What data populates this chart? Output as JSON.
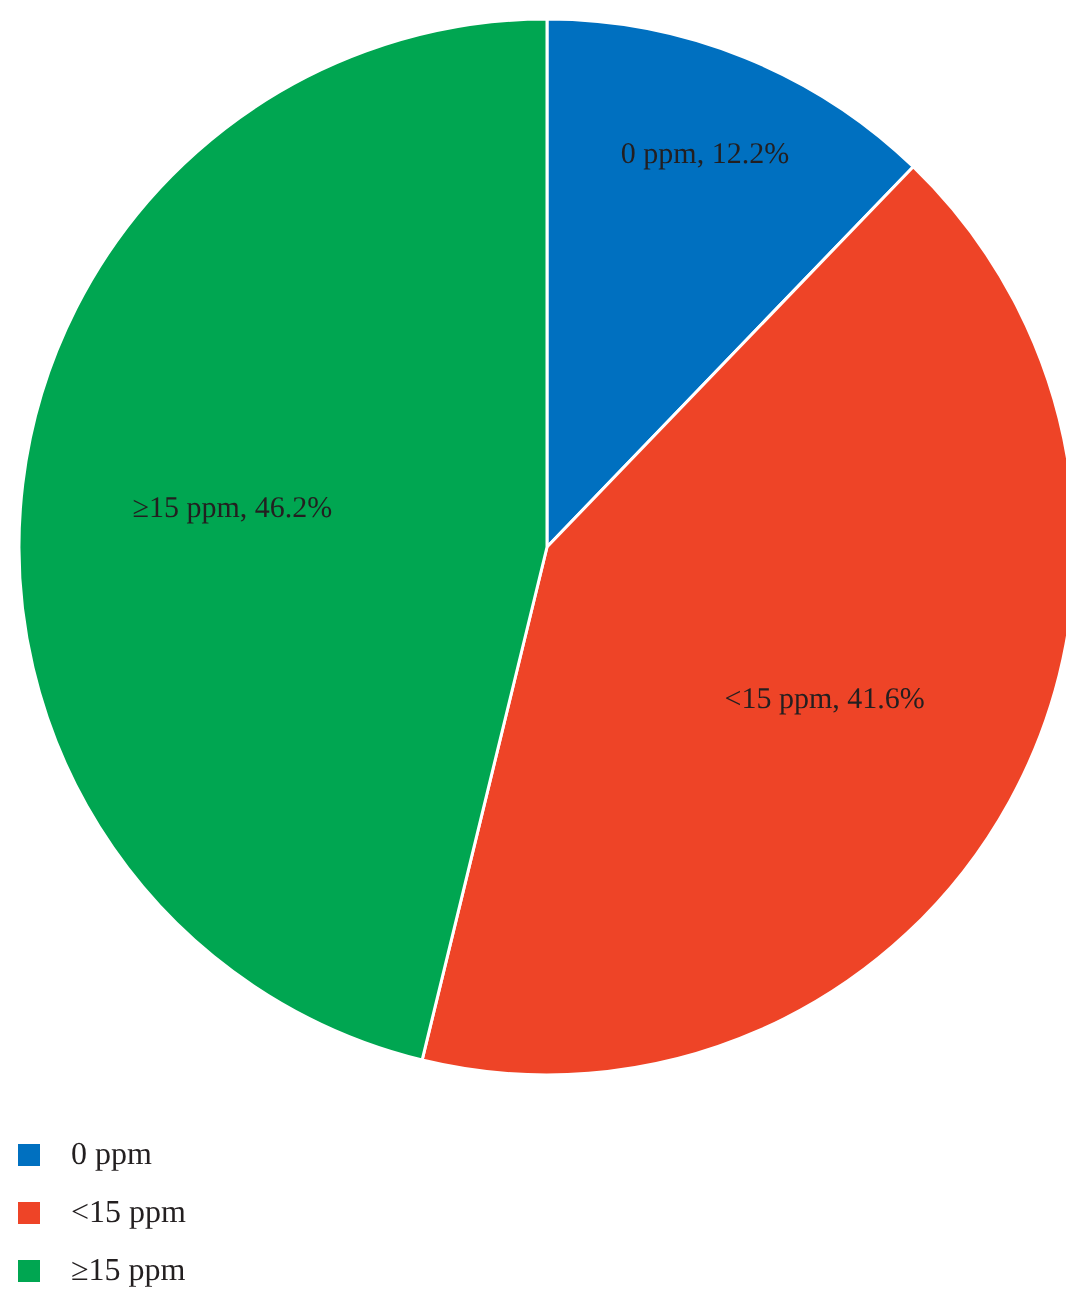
{
  "chart_data": {
    "type": "pie",
    "categories": [
      "0 ppm",
      "<15 ppm",
      "≥15 ppm"
    ],
    "values": [
      12.2,
      41.6,
      46.2
    ],
    "colors": [
      "#0070c0",
      "#ee4427",
      "#00a651"
    ],
    "value_labels": [
      "0 ppm, 12.2%",
      "<15 ppm, 41.6%",
      "≥15 ppm, 46.2%"
    ],
    "legend": "bottom left"
  }
}
